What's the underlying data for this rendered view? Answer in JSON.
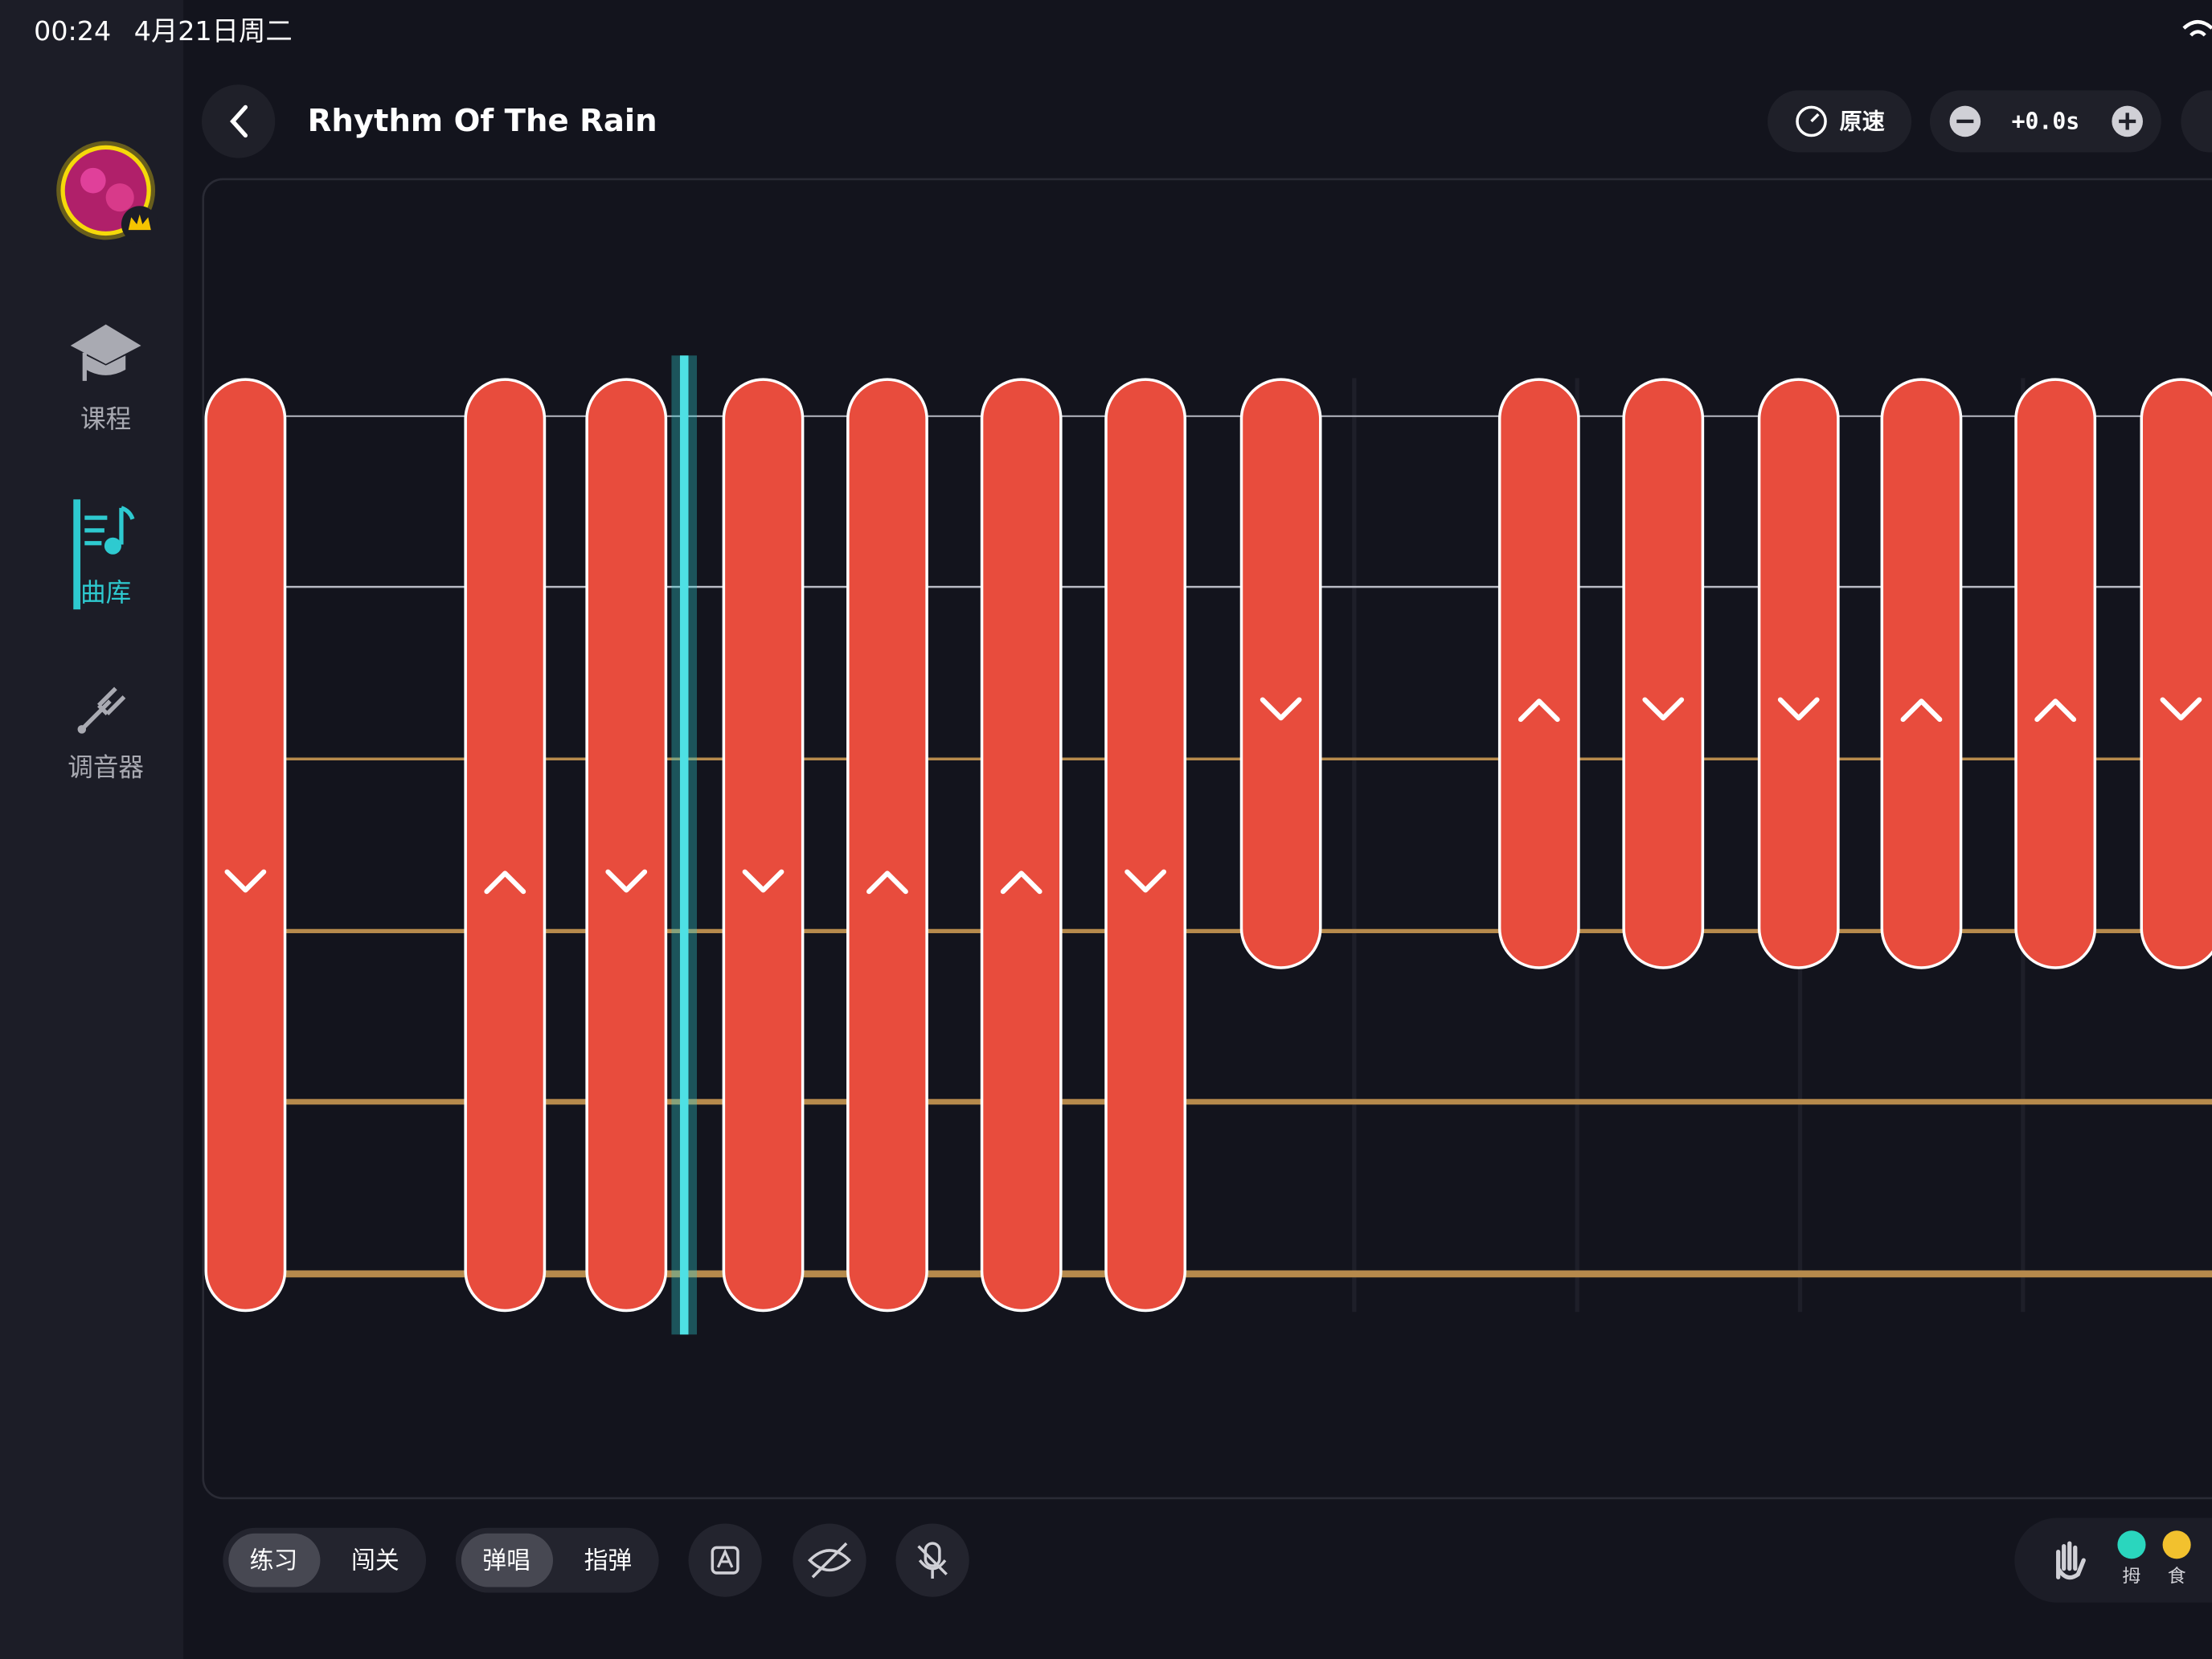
{
  "status_bar": {
    "time": "00:24",
    "date": "4月21日周二"
  },
  "sidebar": {
    "items": [
      "课程",
      "曲库",
      "调音器"
    ]
  },
  "header": {
    "title": "Rhythm Of The Rain",
    "speed": "原速",
    "offset": "+0.0s"
  },
  "toolbar": {
    "mode": [
      "练习",
      "闯关"
    ],
    "style": [
      "弹唱",
      "指弹"
    ],
    "fingers": [
      "拇",
      "食"
    ]
  }
}
